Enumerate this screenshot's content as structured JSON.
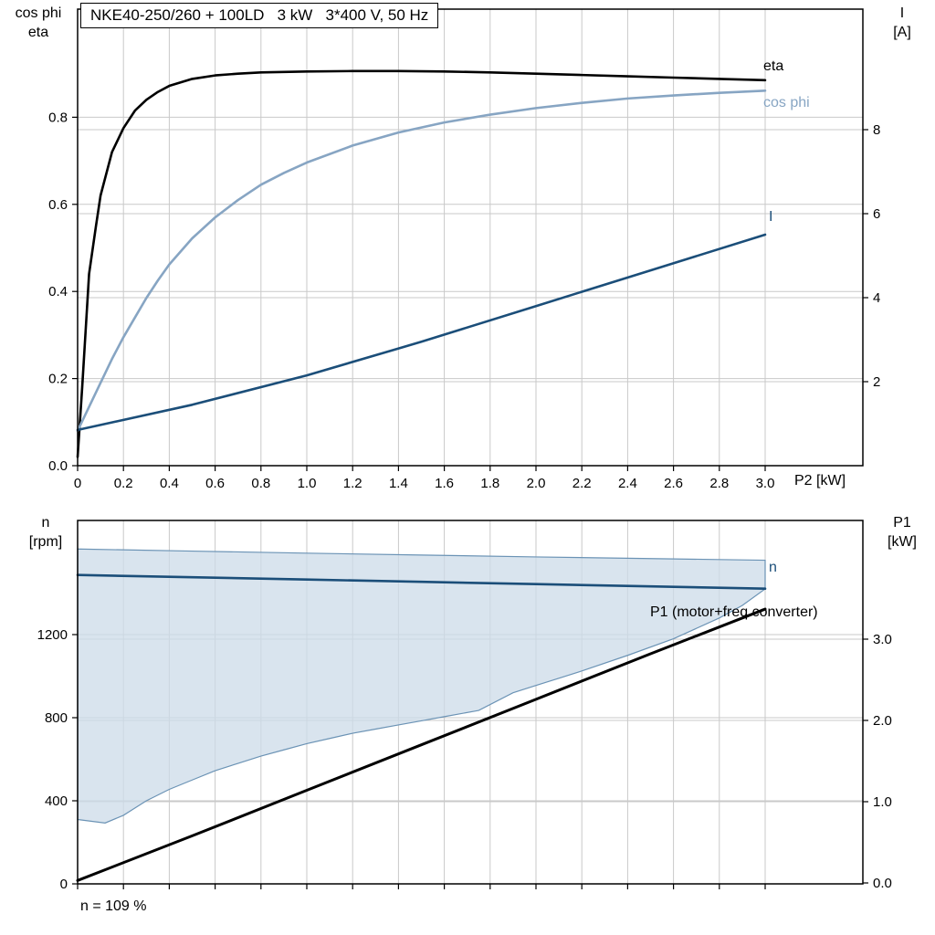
{
  "header": {
    "title": "NKE40-250/260 + 100LD   3 kW   3*400 V, 50 Hz"
  },
  "footer": {
    "note": "n = 109 %"
  },
  "colors": {
    "eta": "#000000",
    "cos_phi": "#87a5c3",
    "current": "#1b4e79",
    "speed": "#1b4e79",
    "p1": "#000000",
    "envelope_fill": "#ccdbe8",
    "envelope_stroke": "#6b93b5",
    "grid": "#c9c9c9"
  },
  "chart_data": {
    "top": {
      "type": "line",
      "x_label": "P2 [kW]",
      "x_ticks": {
        "values": [
          0,
          0.2,
          0.4,
          0.6,
          0.8,
          1.0,
          1.2,
          1.4,
          1.6,
          1.8,
          2.0,
          2.2,
          2.4,
          2.6,
          2.8,
          3.0
        ],
        "labels": [
          "0",
          "0.2",
          "0.4",
          "0.6",
          "0.8",
          "1.0",
          "1.2",
          "1.4",
          "1.6",
          "1.8",
          "2.0",
          "2.2",
          "2.4",
          "2.6",
          "2.8",
          "3.0"
        ]
      },
      "y_left": {
        "label_lines": [
          "cos phi",
          "eta"
        ],
        "tick_values": [
          0,
          0.2,
          0.4,
          0.6,
          0.8
        ],
        "tick_labels": [
          "0.0",
          "0.2",
          "0.4",
          "0.6",
          "0.8"
        ],
        "range": [
          0,
          1.05
        ]
      },
      "y_right": {
        "label_lines": [
          "I",
          "[A]"
        ],
        "tick_values": [
          2,
          4,
          6,
          8
        ],
        "tick_labels": [
          "2",
          "4",
          "6",
          "8"
        ],
        "range": [
          0,
          10.9
        ]
      },
      "series": [
        {
          "name": "eta",
          "axis": "left",
          "color": "#000000",
          "width": 2.6,
          "points": [
            [
              0,
              0.02
            ],
            [
              0.02,
              0.18
            ],
            [
              0.05,
              0.44
            ],
            [
              0.08,
              0.55
            ],
            [
              0.1,
              0.62
            ],
            [
              0.15,
              0.72
            ],
            [
              0.2,
              0.775
            ],
            [
              0.25,
              0.815
            ],
            [
              0.3,
              0.84
            ],
            [
              0.35,
              0.858
            ],
            [
              0.4,
              0.872
            ],
            [
              0.5,
              0.888
            ],
            [
              0.6,
              0.896
            ],
            [
              0.7,
              0.9
            ],
            [
              0.8,
              0.903
            ],
            [
              1.0,
              0.905
            ],
            [
              1.2,
              0.906
            ],
            [
              1.4,
              0.906
            ],
            [
              1.6,
              0.905
            ],
            [
              1.8,
              0.903
            ],
            [
              2.0,
              0.9
            ],
            [
              2.2,
              0.897
            ],
            [
              2.4,
              0.894
            ],
            [
              2.6,
              0.891
            ],
            [
              2.8,
              0.888
            ],
            [
              3.0,
              0.885
            ]
          ]
        },
        {
          "name": "cos phi",
          "axis": "left",
          "color": "#87a5c3",
          "width": 2.6,
          "points": [
            [
              0,
              0.08
            ],
            [
              0.05,
              0.135
            ],
            [
              0.1,
              0.19
            ],
            [
              0.15,
              0.245
            ],
            [
              0.2,
              0.295
            ],
            [
              0.25,
              0.34
            ],
            [
              0.3,
              0.385
            ],
            [
              0.35,
              0.425
            ],
            [
              0.4,
              0.462
            ],
            [
              0.5,
              0.522
            ],
            [
              0.6,
              0.57
            ],
            [
              0.7,
              0.61
            ],
            [
              0.8,
              0.645
            ],
            [
              0.9,
              0.672
            ],
            [
              1.0,
              0.696
            ],
            [
              1.2,
              0.735
            ],
            [
              1.4,
              0.765
            ],
            [
              1.6,
              0.788
            ],
            [
              1.8,
              0.806
            ],
            [
              2.0,
              0.821
            ],
            [
              2.2,
              0.833
            ],
            [
              2.4,
              0.843
            ],
            [
              2.6,
              0.85
            ],
            [
              2.8,
              0.856
            ],
            [
              3.0,
              0.861
            ]
          ]
        },
        {
          "name": "I",
          "axis": "right",
          "color": "#1b4e79",
          "width": 2.6,
          "points": [
            [
              0,
              0.85
            ],
            [
              0.5,
              1.45
            ],
            [
              1.0,
              2.15
            ],
            [
              1.5,
              2.95
            ],
            [
              2.0,
              3.8
            ],
            [
              2.5,
              4.65
            ],
            [
              3.0,
              5.5
            ]
          ]
        }
      ]
    },
    "bottom": {
      "type": "line",
      "x_label": "",
      "x_ticks": {
        "values": [
          0,
          0.2,
          0.4,
          0.6,
          0.8,
          1.0,
          1.2,
          1.4,
          1.6,
          1.8,
          2.0,
          2.2,
          2.4,
          2.6,
          2.8,
          3.0
        ],
        "labels": []
      },
      "y_left": {
        "label_lines": [
          "n",
          "[rpm]"
        ],
        "tick_values": [
          0,
          400,
          800,
          1200
        ],
        "tick_labels": [
          "0",
          "400",
          "800",
          "1200"
        ],
        "range": [
          0,
          1750
        ]
      },
      "y_right": {
        "label_lines": [
          "P1",
          "[kW]"
        ],
        "tick_values": [
          0,
          1,
          2,
          3
        ],
        "tick_labels": [
          "0.0",
          "1.0",
          "2.0",
          "3.0"
        ],
        "range": [
          0,
          4.46
        ]
      },
      "envelope": {
        "name": "speed operating range",
        "fill": "#ccdbe8",
        "stroke": "#6b93b5",
        "top": [
          [
            0,
            1612
          ],
          [
            0.5,
            1602
          ],
          [
            1.0,
            1592
          ],
          [
            1.5,
            1583
          ],
          [
            2.0,
            1574
          ],
          [
            2.5,
            1566
          ],
          [
            3.0,
            1558
          ]
        ],
        "bottom": [
          [
            0,
            310
          ],
          [
            0.12,
            293
          ],
          [
            0.2,
            330
          ],
          [
            0.3,
            400
          ],
          [
            0.4,
            455
          ],
          [
            0.5,
            500
          ],
          [
            0.6,
            545
          ],
          [
            0.7,
            580
          ],
          [
            0.8,
            615
          ],
          [
            0.9,
            645
          ],
          [
            1.0,
            675
          ],
          [
            1.1,
            700
          ],
          [
            1.2,
            725
          ],
          [
            1.3,
            745
          ],
          [
            1.4,
            765
          ],
          [
            1.5,
            785
          ],
          [
            1.6,
            805
          ],
          [
            1.75,
            835
          ],
          [
            1.9,
            920
          ],
          [
            2.0,
            955
          ],
          [
            2.1,
            990
          ],
          [
            2.2,
            1025
          ],
          [
            2.4,
            1100
          ],
          [
            2.6,
            1180
          ],
          [
            2.8,
            1280
          ],
          [
            2.9,
            1340
          ],
          [
            3.0,
            1420
          ]
        ]
      },
      "series": [
        {
          "name": "n",
          "axis": "left",
          "color": "#1b4e79",
          "width": 2.6,
          "points": [
            [
              0,
              1487
            ],
            [
              0.5,
              1476
            ],
            [
              1.0,
              1465
            ],
            [
              1.5,
              1454
            ],
            [
              2.0,
              1443
            ],
            [
              2.5,
              1432
            ],
            [
              3.0,
              1421
            ]
          ]
        },
        {
          "name": "P1 (motor+freq.converter)",
          "axis": "right",
          "color": "#000000",
          "width": 3,
          "points": [
            [
              0,
              0.03
            ],
            [
              0.5,
              0.58
            ],
            [
              1.0,
              1.14
            ],
            [
              1.5,
              1.7
            ],
            [
              2.0,
              2.26
            ],
            [
              2.5,
              2.82
            ],
            [
              3.0,
              3.37
            ]
          ]
        }
      ]
    }
  }
}
